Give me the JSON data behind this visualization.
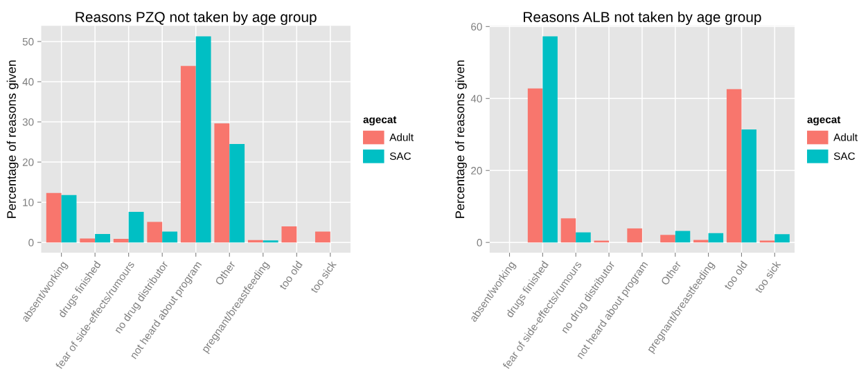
{
  "chart_data": [
    {
      "type": "bar",
      "title": "Reasons PZQ not taken by age group",
      "ylabel": "Percentage of reasons given",
      "legend_title": "agecat",
      "legend": "right",
      "categories": [
        "absent/working",
        "drugs finished",
        "fear of side-effects/rumours",
        "no drug distributor",
        "not heard about program",
        "Other",
        "pregnant/breastfeeding",
        "too old",
        "too sick"
      ],
      "series": [
        {
          "name": "Adult",
          "color": "#f8766d",
          "values": [
            12.3,
            1.0,
            0.9,
            5.1,
            43.9,
            29.6,
            0.6,
            4.0,
            2.7
          ]
        },
        {
          "name": "SAC",
          "color": "#00bfc4",
          "values": [
            11.8,
            2.1,
            7.6,
            2.7,
            51.3,
            24.5,
            0.5,
            null,
            null
          ]
        }
      ],
      "ylim": [
        -2.57,
        53.9
      ],
      "yticks": [
        0,
        10,
        20,
        30,
        40,
        50
      ],
      "grid": true
    },
    {
      "type": "bar",
      "title": "Reasons ALB not taken by age group",
      "ylabel": "Percentage of reasons given",
      "legend_title": "agecat",
      "legend": "right",
      "categories": [
        "absent/working",
        "drugs finished",
        "fear of side-effects/rumours",
        "no drug distributor",
        "not heard about program",
        "Other",
        "pregnant/breastfeeding",
        "too old",
        "too sick"
      ],
      "series": [
        {
          "name": "Adult",
          "color": "#f8766d",
          "values": [
            null,
            42.8,
            6.7,
            0.5,
            3.9,
            2.1,
            0.7,
            42.6,
            0.5
          ]
        },
        {
          "name": "SAC",
          "color": "#00bfc4",
          "values": [
            null,
            57.3,
            2.8,
            null,
            null,
            3.2,
            2.6,
            31.4,
            2.3
          ]
        }
      ],
      "ylim": [
        -2.87,
        60.2
      ],
      "yticks": [
        0,
        20,
        40,
        60
      ],
      "grid": true
    }
  ]
}
